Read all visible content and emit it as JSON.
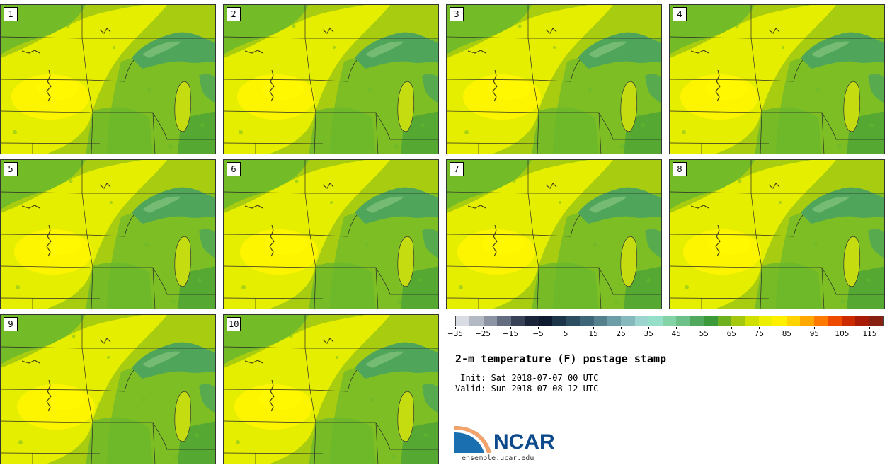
{
  "title": "2-m temperature (F) postage stamp",
  "init_line": " Init: Sat 2018-07-07 00 UTC",
  "valid_line": "Valid: Sun 2018-07-08 12 UTC",
  "logo": {
    "name": "NCAR",
    "site": "ensemble.ucar.edu"
  },
  "members": [
    {
      "label": "1"
    },
    {
      "label": "2"
    },
    {
      "label": "3"
    },
    {
      "label": "4"
    },
    {
      "label": "5"
    },
    {
      "label": "6"
    },
    {
      "label": "7"
    },
    {
      "label": "8"
    },
    {
      "label": "9"
    },
    {
      "label": "10"
    }
  ],
  "colorbar": {
    "min": -35,
    "max": 120,
    "step": 5,
    "tick_labels": [
      "−35",
      "−25",
      "−15",
      "−5",
      "5",
      "15",
      "25",
      "35",
      "45",
      "55",
      "65",
      "75",
      "85",
      "95",
      "105",
      "115"
    ],
    "colors": [
      "#d9dde3",
      "#b4bac4",
      "#8c94a3",
      "#646d80",
      "#3a4258",
      "#1c2439",
      "#0e1a30",
      "#1d3548",
      "#2d4e60",
      "#3e6678",
      "#55818f",
      "#6d9da6",
      "#86b9bb",
      "#9cd4cf",
      "#95dfc9",
      "#83d3a6",
      "#6cc088",
      "#52a85c",
      "#3c9a3a",
      "#6fb020",
      "#a4c810",
      "#d0e000",
      "#ecf000",
      "#fff000",
      "#ffd400",
      "#ffa800",
      "#ff7a00",
      "#ee4a00",
      "#cc2a00",
      "#a81c08",
      "#862010"
    ]
  },
  "map_colors": {
    "land_base": "#a8cc10",
    "yellow": "#e6ee00",
    "bright_yellow": "#fff500",
    "green": "#6ab82c",
    "dark_green": "#3c9a3a",
    "lake": "#4fa55a",
    "lake_light": "#7fc07a",
    "michigan": "#c4dc10"
  }
}
